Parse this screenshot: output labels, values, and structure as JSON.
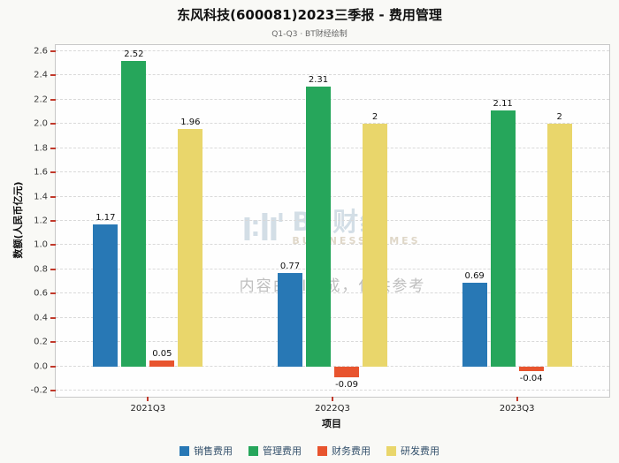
{
  "chart_data": {
    "type": "bar",
    "title": "东风科技(600081)2023三季报 - 费用管理",
    "subtitle": "Q1-Q3 · BT财经绘制",
    "xlabel": "项目",
    "ylabel": "数额(人民币亿元)",
    "categories": [
      "2021Q3",
      "2022Q3",
      "2023Q3"
    ],
    "series": [
      {
        "name": "销售费用",
        "color": "#2878b5",
        "values": [
          1.17,
          0.77,
          0.69
        ]
      },
      {
        "name": "管理费用",
        "color": "#26a65b",
        "values": [
          2.52,
          2.31,
          2.11
        ]
      },
      {
        "name": "财务费用",
        "color": "#e8542e",
        "values": [
          0.05,
          -0.09,
          -0.04
        ]
      },
      {
        "name": "研发费用",
        "color": "#e9d66b",
        "values": [
          1.96,
          2,
          2
        ]
      }
    ],
    "ylim": [
      -0.2,
      2.6
    ],
    "ytick_step": 0.2,
    "grid": true,
    "grid_style": "dashed",
    "legend_position": "bottom",
    "bar_value_labels": true,
    "tick_color": "#c0392b"
  },
  "watermark": {
    "brand": "BT财经",
    "brand_sub": "BUSINESS TIMES",
    "disclaimer": "内容由AI生成，仅供参考"
  }
}
